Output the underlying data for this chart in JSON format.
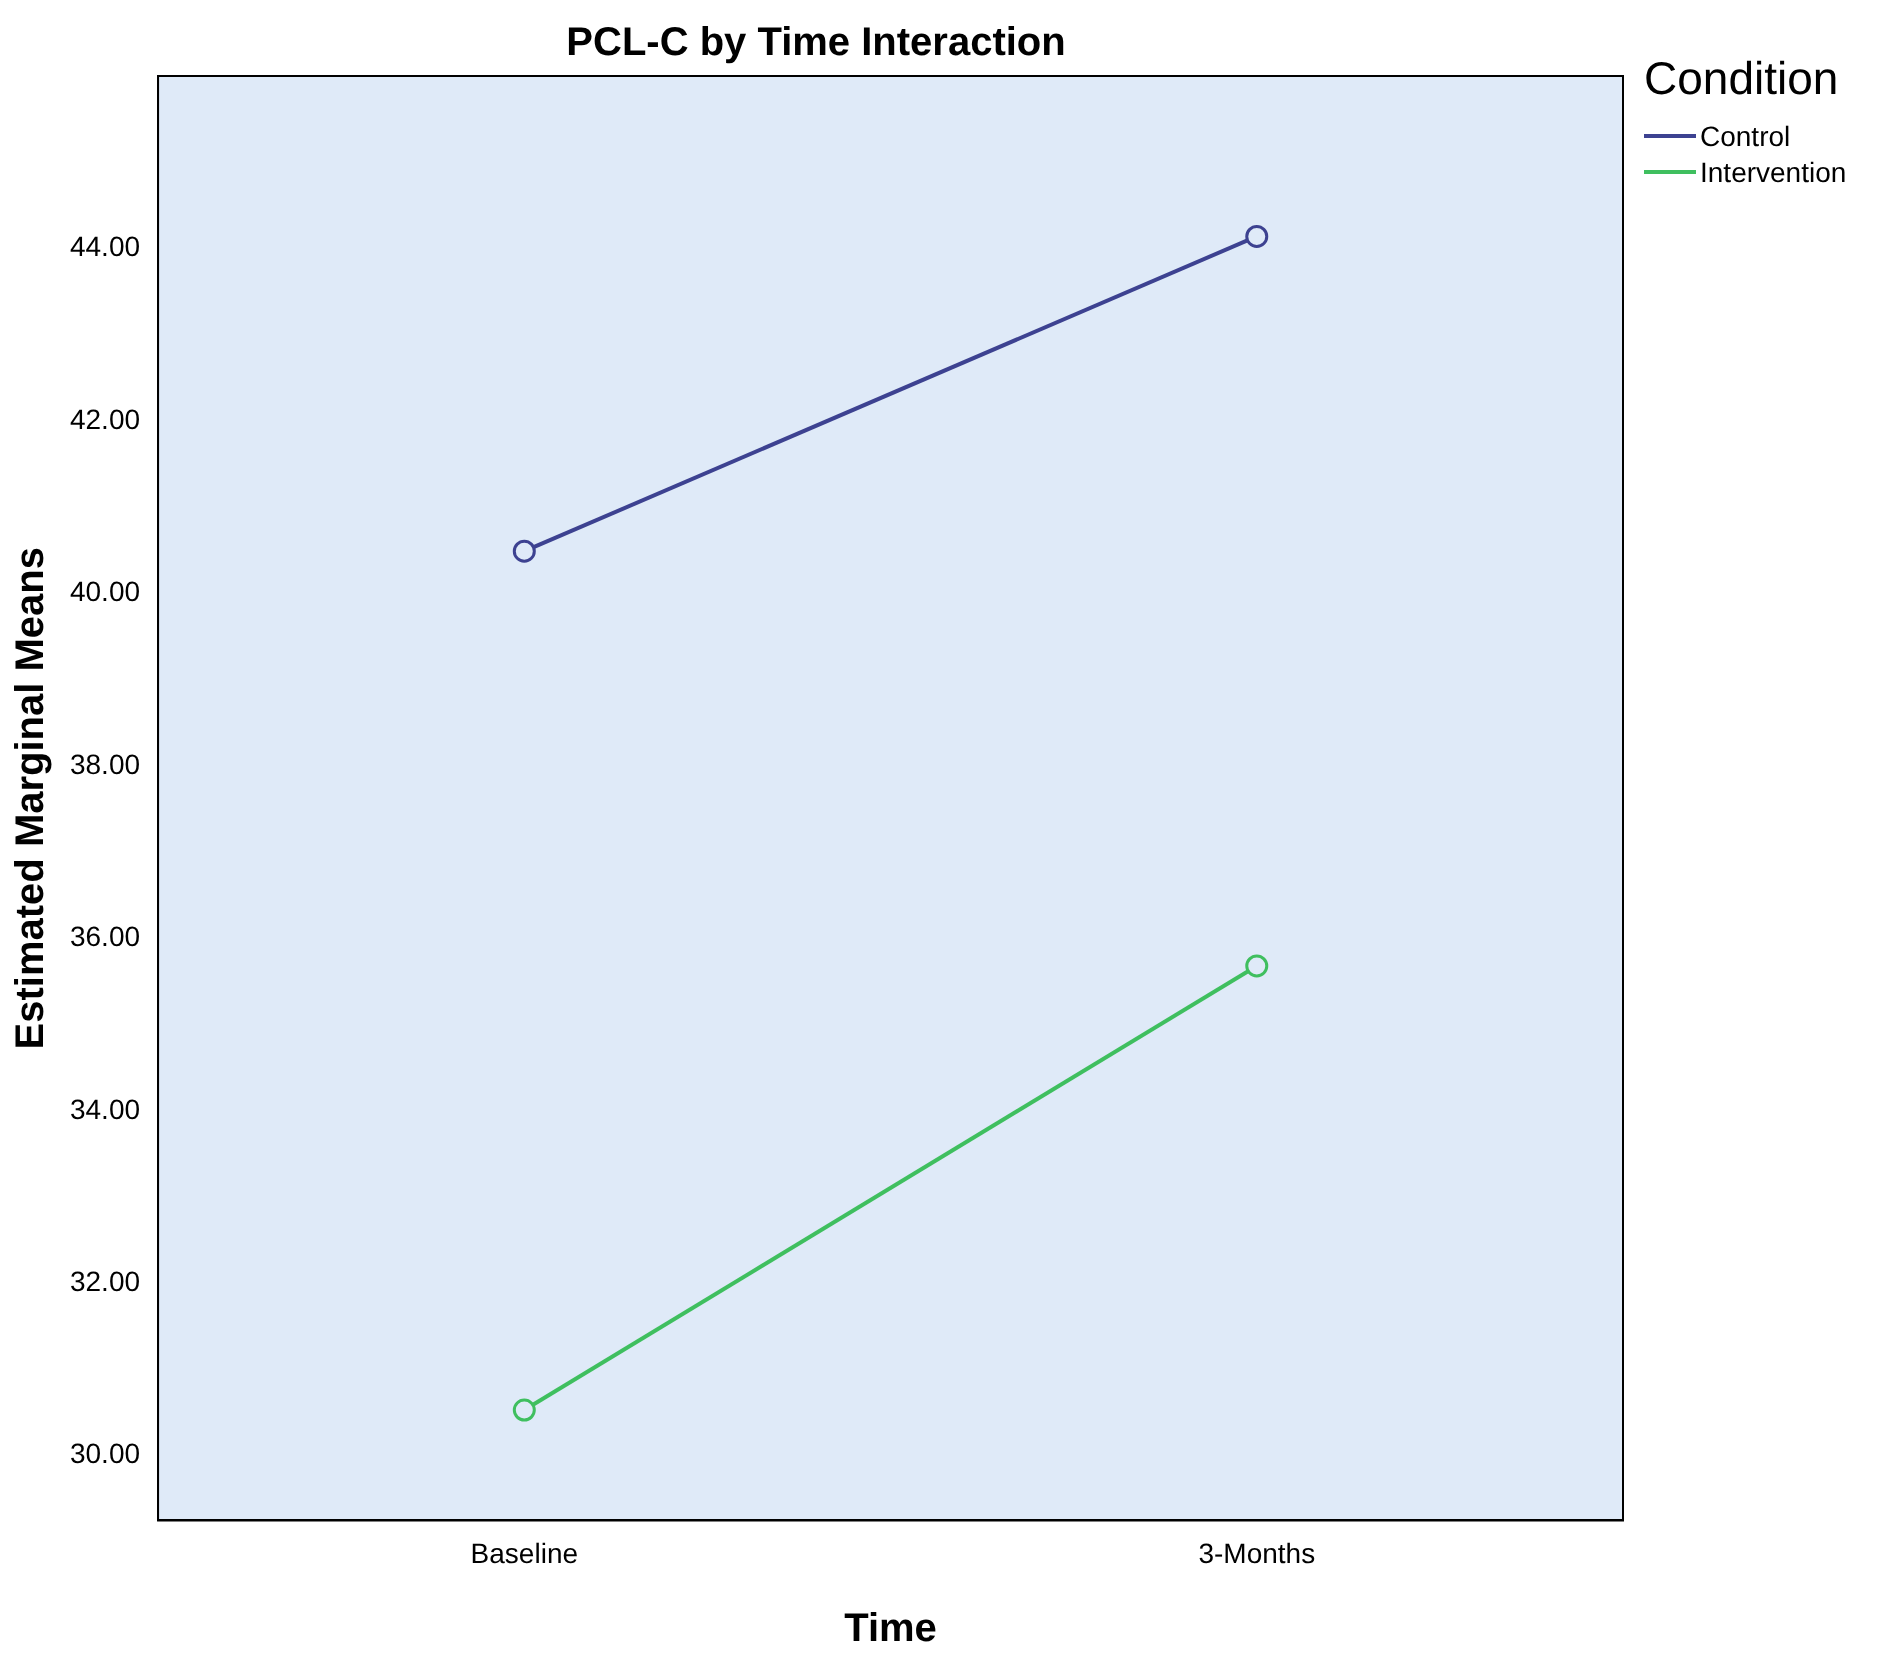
{
  "chart_data": {
    "type": "line",
    "title": "PCL-C by Time Interaction",
    "xlabel": "Time",
    "ylabel": "Estimated Marginal Means",
    "legend_title": "Condition",
    "categories": [
      "Baseline",
      "3-Months"
    ],
    "series": [
      {
        "name": "Control",
        "color": "#3d4291",
        "values": [
          40.49,
          44.14
        ]
      },
      {
        "name": "Intervention",
        "color": "#3fbf5f",
        "values": [
          30.53,
          35.68
        ]
      }
    ],
    "ylim": [
      29.25,
      46
    ],
    "yticks": [
      {
        "value": 30,
        "label": "30.00"
      },
      {
        "value": 32,
        "label": "32.00"
      },
      {
        "value": 34,
        "label": "34.00"
      },
      {
        "value": 36,
        "label": "36.00"
      },
      {
        "value": 38,
        "label": "38.00"
      },
      {
        "value": 40,
        "label": "40.00"
      },
      {
        "value": 42,
        "label": "42.00"
      },
      {
        "value": 44,
        "label": "44.00"
      }
    ],
    "grid": false,
    "legend": "top right",
    "marker": "circle",
    "line_style": "solid"
  }
}
